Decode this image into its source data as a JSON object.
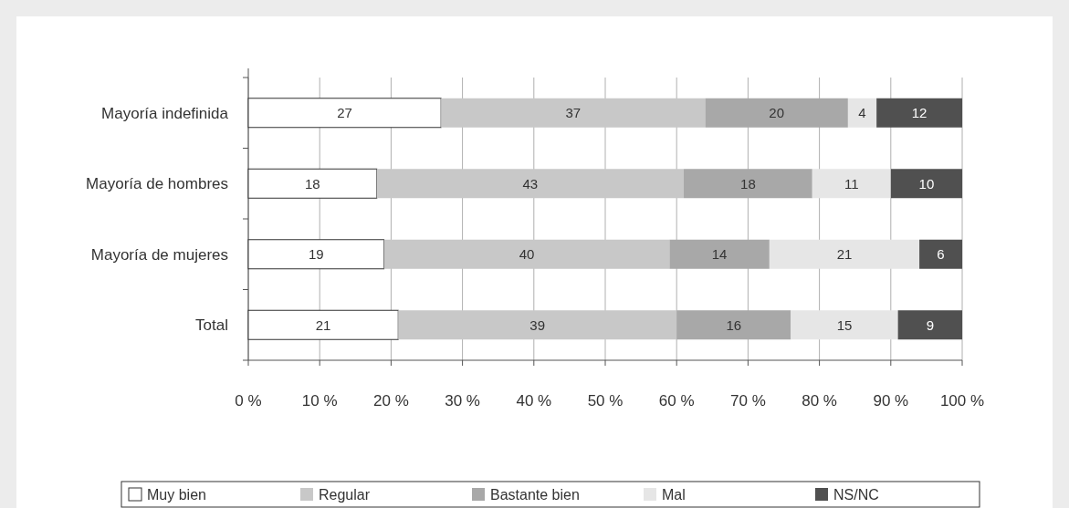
{
  "chart_data": {
    "type": "bar",
    "orientation": "horizontal",
    "stacked": true,
    "categories": [
      "Mayoría indefinida",
      "Mayoría de hombres",
      "Mayoría de mujeres",
      "Total"
    ],
    "series": [
      {
        "name": "Muy bien",
        "color": "#ffffff",
        "values": [
          27,
          18,
          19,
          21
        ]
      },
      {
        "name": "Regular",
        "color": "#c8c8c8",
        "values": [
          37,
          43,
          40,
          39
        ]
      },
      {
        "name": "Bastante bien",
        "color": "#a8a8a8",
        "values": [
          20,
          18,
          14,
          16
        ]
      },
      {
        "name": "Mal",
        "color": "#e6e6e6",
        "values": [
          4,
          11,
          21,
          15
        ]
      },
      {
        "name": "NS/NC",
        "color": "#505050",
        "values": [
          12,
          10,
          6,
          9
        ]
      }
    ],
    "xlim": [
      0,
      100
    ],
    "xticks": [
      {
        "value": 0,
        "label": "0 %"
      },
      {
        "value": 10,
        "label": "10 %"
      },
      {
        "value": 20,
        "label": "20 %"
      },
      {
        "value": 30,
        "label": "30 %"
      },
      {
        "value": 40,
        "label": "40 %"
      },
      {
        "value": 50,
        "label": "50 %"
      },
      {
        "value": 60,
        "label": "60 %"
      },
      {
        "value": 70,
        "label": "70 %"
      },
      {
        "value": 80,
        "label": "80 %"
      },
      {
        "value": 90,
        "label": "90 %"
      },
      {
        "value": 100,
        "label": "100 %"
      }
    ],
    "grid": "x",
    "legend": "bottom",
    "data_labels": true
  }
}
